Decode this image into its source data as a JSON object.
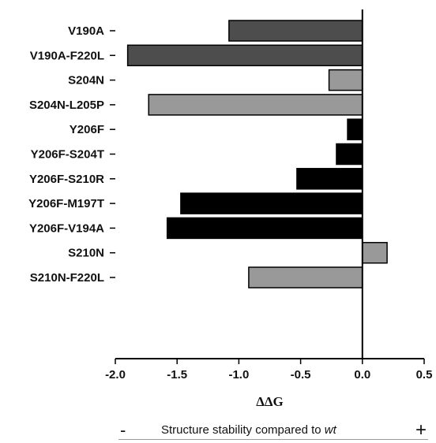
{
  "chart_data": {
    "type": "bar",
    "orientation": "horizontal",
    "categories": [
      "V190A",
      "V190A-F220L",
      "S204N",
      "S204N-L205P",
      "Y206F",
      "Y206F-S204T",
      "Y206F-S210R",
      "Y206F-M197T",
      "Y206F-V194A",
      "S210N",
      "S210N-F220L"
    ],
    "values": [
      -1.08,
      -1.9,
      -0.27,
      -1.73,
      -0.12,
      -0.21,
      -0.53,
      -1.47,
      -1.58,
      0.2,
      -0.92
    ],
    "colors": [
      "#4d4d4d",
      "#4d4d4d",
      "#999999",
      "#999999",
      "#000000",
      "#000000",
      "#000000",
      "#000000",
      "#000000",
      "#999999",
      "#999999"
    ],
    "xlabel": "ΔΔG",
    "xlim": [
      -2.0,
      0.5
    ],
    "xticks": [
      "-2.0",
      "-1.5",
      "-1.0",
      "-0.5",
      "0.0",
      "0.5"
    ],
    "grid": false
  },
  "footer": {
    "minus": "-",
    "caption_prefix": "Structure stability compared to ",
    "caption_italic": "wt",
    "plus": "+"
  }
}
